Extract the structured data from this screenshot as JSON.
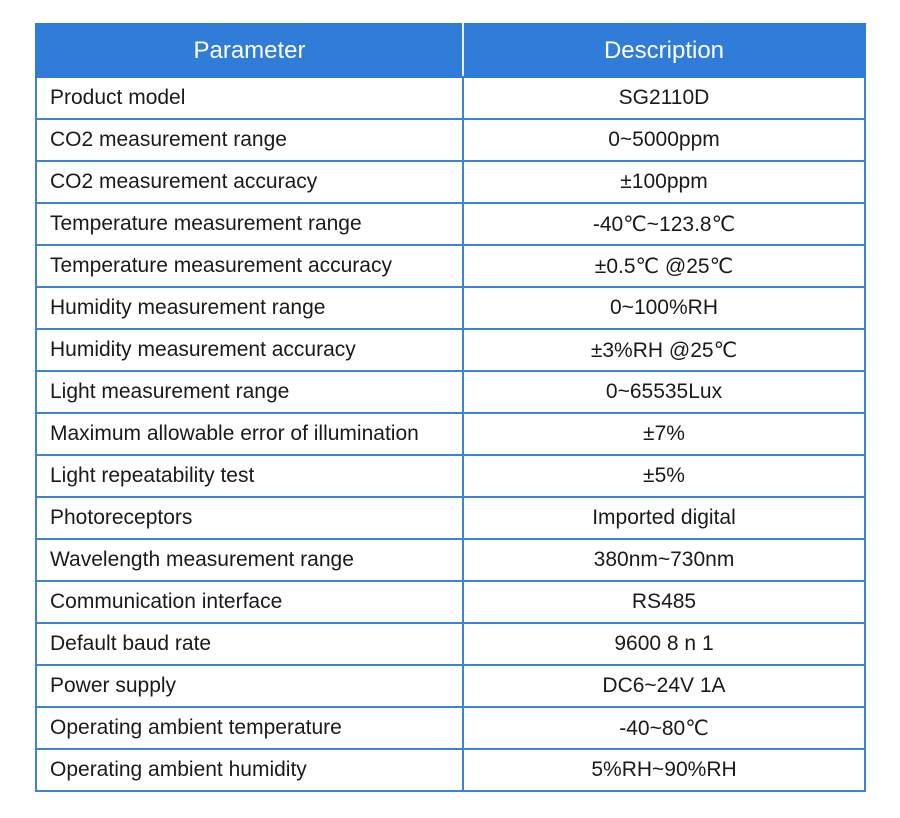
{
  "header": {
    "parameter": "Parameter",
    "description": "Description"
  },
  "rows": [
    {
      "parameter": "Product model",
      "description": "SG2110D"
    },
    {
      "parameter": "CO2 measurement range",
      "description": "0~5000ppm"
    },
    {
      "parameter": "CO2 measurement accuracy",
      "description": "±100ppm"
    },
    {
      "parameter": "Temperature measurement range",
      "description": "-40℃~123.8℃"
    },
    {
      "parameter": "Temperature measurement accuracy",
      "description": "±0.5℃ @25℃"
    },
    {
      "parameter": "Humidity measurement range",
      "description": "0~100%RH"
    },
    {
      "parameter": "Humidity measurement accuracy",
      "description": "±3%RH @25℃"
    },
    {
      "parameter": "Light measurement range",
      "description": "0~65535Lux"
    },
    {
      "parameter": "Maximum allowable error of illumination",
      "description": "±7%"
    },
    {
      "parameter": "Light repeatability test",
      "description": "±5%"
    },
    {
      "parameter": "Photoreceptors",
      "description": "Imported digital"
    },
    {
      "parameter": "Wavelength measurement range",
      "description": "380nm~730nm"
    },
    {
      "parameter": "Communication interface",
      "description": "RS485"
    },
    {
      "parameter": "Default baud rate",
      "description": "9600 8 n 1"
    },
    {
      "parameter": "Power supply",
      "description": "DC6~24V 1A"
    },
    {
      "parameter": "Operating ambient temperature",
      "description": "-40~80℃"
    },
    {
      "parameter": "Operating ambient humidity",
      "description": "5%RH~90%RH"
    }
  ],
  "colors": {
    "header_bg": "#2f7dd8",
    "header_text": "#ffffff",
    "border": "#3d82d4",
    "body_text": "#1a1a1a"
  }
}
